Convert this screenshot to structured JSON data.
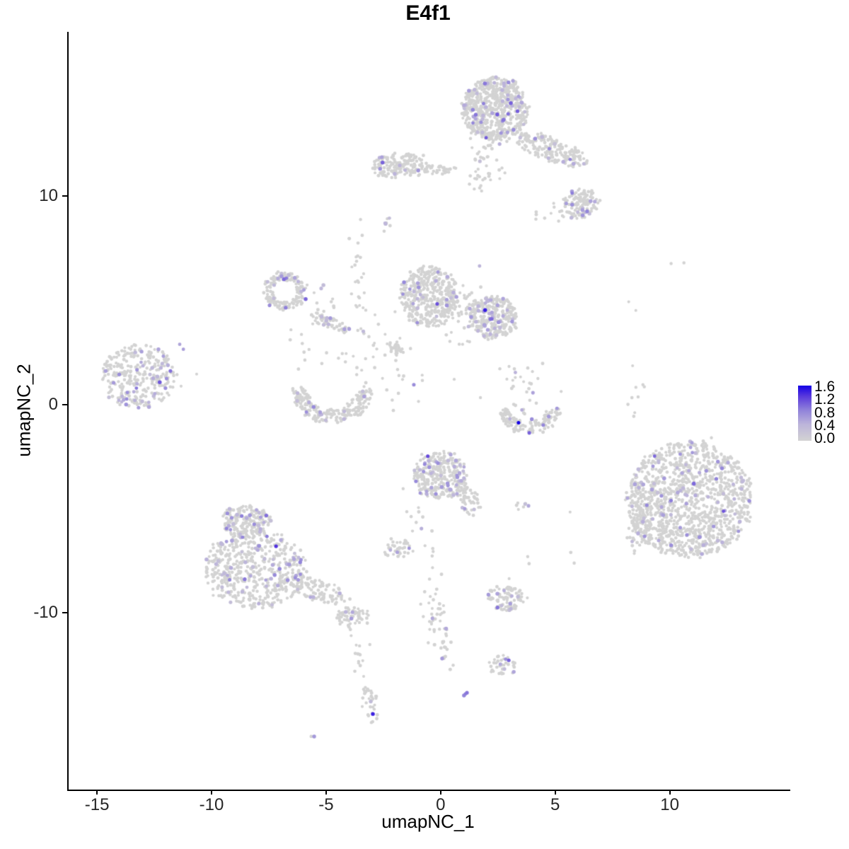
{
  "title": "E4f1",
  "axes": {
    "x": {
      "label": "umapNC_1",
      "ticks": [
        "-15",
        "-10",
        "-5",
        "0",
        "5",
        "10"
      ]
    },
    "y": {
      "label": "umapNC_2",
      "ticks": [
        "10",
        "0",
        "-10"
      ]
    }
  },
  "legend": {
    "labels": [
      "1.6",
      "1.2",
      "0.8",
      "0.4",
      "0.0"
    ],
    "min": 0.0,
    "max": 1.6,
    "gradient": [
      "#D3D3D3",
      "#BCB4DA",
      "#9183DA",
      "#5B3BDC",
      "#1400E6"
    ]
  },
  "colors": {
    "background": "#FFFFFF",
    "axis": "#000000",
    "tick_text": "#262626",
    "point_base": "#D3D3D3",
    "point_max": "#1400E6"
  },
  "chart_data": {
    "type": "scatter",
    "title": "E4f1",
    "xlabel": "umapNC_1",
    "ylabel": "umapNC_2",
    "xlim": [
      -16.3,
      15.2
    ],
    "ylim": [
      -18.5,
      17.9
    ],
    "x_ticks": [
      -15,
      -10,
      -5,
      0,
      5,
      10
    ],
    "y_ticks": [
      10,
      0,
      -10
    ],
    "color_scale": {
      "min": 0.0,
      "max": 1.6,
      "low": "#D3D3D3",
      "high": "#1400E6"
    },
    "seed": 20240817,
    "clusters": [
      {
        "name": "top-main",
        "shape": "blob",
        "cx": 2.38,
        "cy": 14.22,
        "rx": 1.45,
        "ry": 1.55,
        "rot": 0,
        "n": 650,
        "frac": 0.09
      },
      {
        "name": "top-neck",
        "shape": "gauss",
        "cx": 1.85,
        "cy": 12.1,
        "rx": 0.37,
        "ry": 0.85,
        "rot": 0,
        "n": 50,
        "frac": 0.04
      },
      {
        "name": "top-arm",
        "shape": "blob",
        "cx": 4.85,
        "cy": 12.24,
        "rx": 1.7,
        "ry": 0.55,
        "rot": -20,
        "n": 200,
        "frac": 0.05
      },
      {
        "name": "arm-end-blob",
        "shape": "blob",
        "cx": 6.14,
        "cy": 9.66,
        "rx": 0.8,
        "ry": 0.71,
        "rot": 0,
        "n": 130,
        "frac": 0.1
      },
      {
        "name": "arm-under-sparse",
        "shape": "gauss",
        "cx": 5.0,
        "cy": 9.1,
        "rx": 0.5,
        "ry": 0.35,
        "rot": 0,
        "n": 10,
        "frac": 0.0
      },
      {
        "name": "upper-left-lobe1",
        "shape": "blob",
        "cx": -2.31,
        "cy": 11.43,
        "rx": 0.62,
        "ry": 0.61,
        "rot": 0,
        "n": 90,
        "frac": 0.06
      },
      {
        "name": "upper-left-lobe2",
        "shape": "blob",
        "cx": -1.17,
        "cy": 11.53,
        "rx": 0.68,
        "ry": 0.54,
        "rot": 0,
        "n": 90,
        "frac": 0.04
      },
      {
        "name": "upper-left-bridge",
        "shape": "blob",
        "cx": -0.03,
        "cy": 11.29,
        "rx": 0.68,
        "ry": 0.17,
        "rot": 0,
        "n": 30,
        "frac": 0.03
      },
      {
        "name": "small-streak",
        "shape": "gauss",
        "cx": -2.35,
        "cy": 8.88,
        "rx": 0.15,
        "ry": 0.3,
        "rot": 0,
        "n": 7,
        "frac": 0.3
      },
      {
        "name": "below-neck-sparse",
        "shape": "gauss",
        "cx": 1.85,
        "cy": 10.88,
        "rx": 0.5,
        "ry": 0.55,
        "rot": 0,
        "n": 10,
        "frac": 0.0
      },
      {
        "name": "ring",
        "shape": "ring",
        "cx": -6.79,
        "cy": 5.44,
        "R": 0.9,
        "w": 0.4,
        "rot": 0,
        "n": 160,
        "frac": 0.08
      },
      {
        "name": "ring-side-sparse",
        "shape": "gauss",
        "cx": -5.2,
        "cy": 4.9,
        "rx": 0.35,
        "ry": 0.4,
        "rot": 0,
        "n": 12,
        "frac": 0.08
      },
      {
        "name": "chain-diагonal",
        "shape": "blob",
        "cx": -4.88,
        "cy": 3.98,
        "rx": 1.0,
        "ry": 0.27,
        "rot": -25,
        "n": 55,
        "frac": 0.1
      },
      {
        "name": "chain-vertical",
        "shape": "gauss",
        "cx": -3.55,
        "cy": 5.9,
        "rx": 0.19,
        "ry": 1.2,
        "rot": 0,
        "n": 28,
        "frac": 0.07
      },
      {
        "name": "center-blob",
        "shape": "blob",
        "cx": -0.49,
        "cy": 5.2,
        "rx": 1.25,
        "ry": 1.45,
        "rot": 0,
        "n": 420,
        "frac": 0.07
      },
      {
        "name": "center-right-blob",
        "shape": "blob",
        "cx": 2.28,
        "cy": 4.18,
        "rx": 1.05,
        "ry": 1.0,
        "rot": 0,
        "n": 260,
        "frac": 0.13
      },
      {
        "name": "center-bridge",
        "shape": "gauss",
        "cx": 1.08,
        "cy": 4.42,
        "rx": 0.56,
        "ry": 0.68,
        "rot": 0,
        "n": 70,
        "frac": 0.04
      },
      {
        "name": "small-below-center",
        "shape": "blob",
        "cx": -1.94,
        "cy": 2.65,
        "rx": 0.4,
        "ry": 0.37,
        "rot": 0,
        "n": 28,
        "frac": 0.04
      },
      {
        "name": "center-sparse",
        "shape": "gauss",
        "cx": -2.31,
        "cy": 2.28,
        "rx": 1.1,
        "ry": 1.1,
        "rot": 0,
        "n": 45,
        "frac": 0.02
      },
      {
        "name": "far-left",
        "shape": "blob",
        "cx": -13.18,
        "cy": 1.36,
        "rx": 1.6,
        "ry": 1.56,
        "rot": 0,
        "n": 310,
        "frac": 0.12
      },
      {
        "name": "left-crescent",
        "shape": "arc",
        "cx": -4.72,
        "cy": 0.82,
        "R": 1.45,
        "w": 0.45,
        "a0": 185,
        "a1": 355,
        "n": 210,
        "frac": 0.08
      },
      {
        "name": "crescent-top-dots",
        "shape": "gauss",
        "cx": -5.86,
        "cy": 2.7,
        "rx": 0.4,
        "ry": 0.7,
        "rot": 0,
        "n": 10,
        "frac": 0.0
      },
      {
        "name": "right-crescent",
        "shape": "arc",
        "cx": 3.86,
        "cy": 0.07,
        "R": 1.2,
        "w": 0.45,
        "a0": 195,
        "a1": 345,
        "n": 140,
        "frac": 0.04
      },
      {
        "name": "above-crescent",
        "shape": "gauss",
        "cx": 3.52,
        "cy": 0.85,
        "rx": 0.62,
        "ry": 0.61,
        "rot": 0,
        "n": 30,
        "frac": 0.08
      },
      {
        "name": "bottom-center",
        "shape": "blob",
        "cx": -0.03,
        "cy": -3.4,
        "rx": 1.15,
        "ry": 1.18,
        "rot": 0,
        "n": 290,
        "frac": 0.13
      },
      {
        "name": "bottom-center-arm",
        "shape": "blob",
        "cx": 1.23,
        "cy": -4.63,
        "rx": 0.4,
        "ry": 0.75,
        "rot": 20,
        "n": 55,
        "frac": 0.1
      },
      {
        "name": "bottom-center-tail",
        "shape": "gauss",
        "cx": -1.02,
        "cy": -5.48,
        "rx": 0.2,
        "ry": 0.78,
        "rot": 25,
        "n": 13,
        "frac": 0.08
      },
      {
        "name": "small-pair-row",
        "shape": "blob",
        "cx": 3.46,
        "cy": -4.9,
        "rx": 0.52,
        "ry": 0.2,
        "rot": 0,
        "n": 8,
        "frac": 0.12
      },
      {
        "name": "small-left-blob",
        "shape": "blob",
        "cx": -1.91,
        "cy": -6.94,
        "rx": 0.65,
        "ry": 0.48,
        "rot": 0,
        "n": 45,
        "frac": 0.1
      },
      {
        "name": "bottomleft-top",
        "shape": "blob",
        "cx": -8.52,
        "cy": -5.61,
        "rx": 1.08,
        "ry": 0.75,
        "rot": 0,
        "n": 180,
        "frac": 0.1
      },
      {
        "name": "bottomleft-main",
        "shape": "blob",
        "cx": -8.12,
        "cy": -7.93,
        "rx": 2.25,
        "ry": 1.9,
        "rot": 0,
        "n": 520,
        "frac": 0.1
      },
      {
        "name": "bottomleft-arm",
        "shape": "blob",
        "cx": -5.49,
        "cy": -8.88,
        "rx": 1.6,
        "ry": 0.51,
        "rot": -18,
        "n": 120,
        "frac": 0.06
      },
      {
        "name": "arm-end",
        "shape": "blob",
        "cx": -3.86,
        "cy": -10.24,
        "rx": 0.71,
        "ry": 0.51,
        "rot": 0,
        "n": 65,
        "frac": 0.1
      },
      {
        "name": "trail-down",
        "shape": "gauss",
        "cx": -3.64,
        "cy": -11.73,
        "rx": 0.15,
        "ry": 0.85,
        "rot": 0,
        "n": 11,
        "frac": 0.0
      },
      {
        "name": "lower-tail-blob",
        "shape": "blob",
        "cx": -3.06,
        "cy": -14.42,
        "rx": 0.31,
        "ry": 0.95,
        "rot": 15,
        "n": 33,
        "frac": 0.12
      },
      {
        "name": "strip-upper",
        "shape": "gauss",
        "cx": -0.28,
        "cy": -9.86,
        "rx": 0.25,
        "ry": 0.85,
        "rot": -8,
        "n": 28,
        "frac": 0.06
      },
      {
        "name": "strip-lower",
        "shape": "gauss",
        "cx": 0.15,
        "cy": -11.43,
        "rx": 0.22,
        "ry": 0.75,
        "rot": 10,
        "n": 26,
        "frac": 0.1
      },
      {
        "name": "mid-right-blob",
        "shape": "blob",
        "cx": 2.87,
        "cy": -9.32,
        "rx": 0.86,
        "ry": 0.58,
        "rot": 0,
        "n": 95,
        "frac": 0.08
      },
      {
        "name": "small-lower-right",
        "shape": "blob",
        "cx": 2.72,
        "cy": -12.55,
        "rx": 0.62,
        "ry": 0.48,
        "rot": 0,
        "n": 38,
        "frac": 0.14
      },
      {
        "name": "right-main",
        "shape": "blob",
        "cx": 10.86,
        "cy": -4.56,
        "rx": 2.75,
        "ry": 2.8,
        "rot": 0,
        "n": 1250,
        "frac": 0.06
      },
      {
        "name": "right-left-arm",
        "shape": "blob",
        "cx": 8.73,
        "cy": -5.95,
        "rx": 0.56,
        "ry": 1.36,
        "rot": 0,
        "n": 70,
        "frac": 0.08
      },
      {
        "name": "right-column",
        "shape": "gauss",
        "cx": 8.49,
        "cy": 0.1,
        "rx": 0.15,
        "ry": 0.6,
        "rot": 0,
        "n": 7,
        "frac": 0.0
      }
    ],
    "highlights": [
      {
        "x": 3.4,
        "y": -0.88,
        "v": 1.6
      },
      {
        "x": 3.98,
        "y": -0.71,
        "v": 0.8
      },
      {
        "x": 4.48,
        "y": -0.99,
        "v": 0.85
      },
      {
        "x": 4.72,
        "y": -0.58,
        "v": 0.7
      },
      {
        "x": 1.08,
        "y": -13.91,
        "v": 0.9
      },
      {
        "x": 1.15,
        "y": -13.85,
        "v": 0.95
      },
      {
        "x": 1.02,
        "y": -13.98,
        "v": 0.85
      },
      {
        "x": -5.65,
        "y": -15.95,
        "v": 0.0
      },
      {
        "x": -5.52,
        "y": -15.95,
        "v": 0.7
      },
      {
        "x": -11.39,
        "y": 2.89,
        "v": 0.6
      },
      {
        "x": -11.23,
        "y": 2.65,
        "v": 0.65
      },
      {
        "x": -10.65,
        "y": 1.46,
        "v": 0.0
      },
      {
        "x": -11.33,
        "y": 0.88,
        "v": 0.0
      },
      {
        "x": -1.17,
        "y": 0.95,
        "v": 0.8
      },
      {
        "x": 10.06,
        "y": 6.77,
        "v": 0.0
      },
      {
        "x": 10.62,
        "y": 6.8,
        "v": 0.0
      },
      {
        "x": 8.21,
        "y": 4.93,
        "v": 0.0
      },
      {
        "x": 8.52,
        "y": 4.52,
        "v": 0.0
      },
      {
        "x": 8.83,
        "y": 0.95,
        "v": 0.0
      },
      {
        "x": 8.89,
        "y": 0.85,
        "v": 0.0
      },
      {
        "x": 11.82,
        "y": -1.6,
        "v": 0.0
      },
      {
        "x": 2.99,
        "y": -8.37,
        "v": 0.0
      },
      {
        "x": 3.8,
        "y": -7.31,
        "v": 0.0
      },
      {
        "x": 3.86,
        "y": -7.65,
        "v": 0.0
      },
      {
        "x": 5.68,
        "y": -7.11,
        "v": 0.0
      },
      {
        "x": 5.83,
        "y": -7.62,
        "v": 0.0
      },
      {
        "x": 5.65,
        "y": -5.17,
        "v": 0.0
      },
      {
        "x": -0.37,
        "y": -7.28,
        "v": 0.0
      },
      {
        "x": -3.09,
        "y": -11.53,
        "v": 0.0
      },
      {
        "x": -3.4,
        "y": -12.31,
        "v": 0.0
      },
      {
        "x": -3.36,
        "y": -13.06,
        "v": 0.0
      },
      {
        "x": 4.17,
        "y": 9.25,
        "v": 0.0
      },
      {
        "x": 4.54,
        "y": 8.95,
        "v": 0.0
      },
      {
        "x": 5.15,
        "y": 8.81,
        "v": 0.0
      }
    ]
  }
}
